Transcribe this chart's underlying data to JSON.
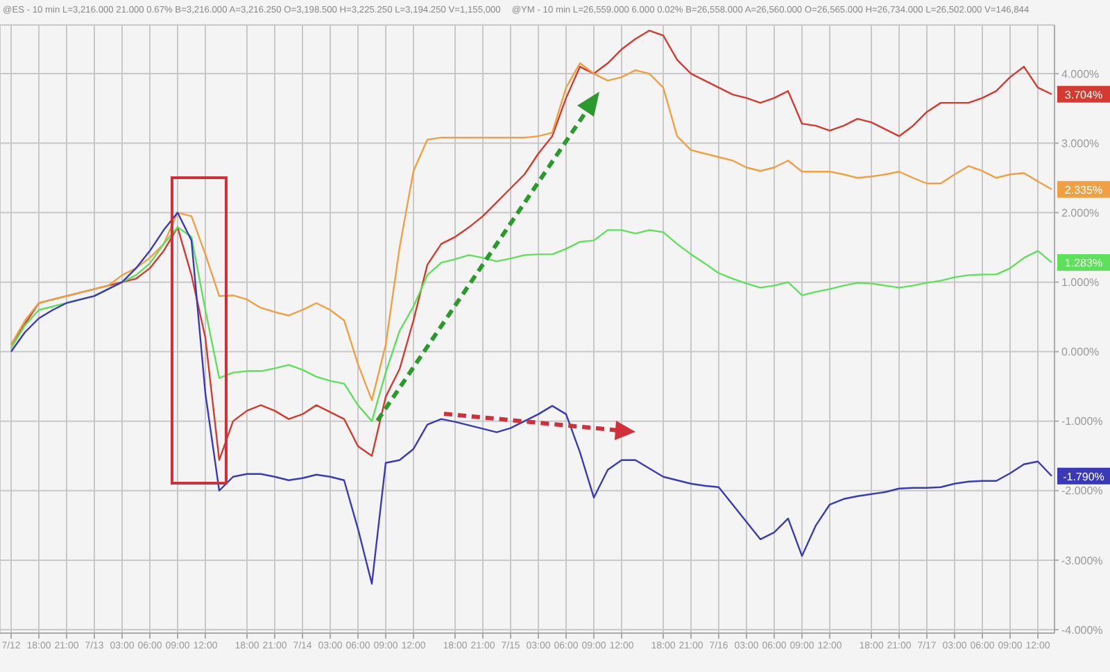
{
  "chart_data": {
    "type": "line",
    "annotations": [
      "@ES - 10 min L=3,216.000 21.000 0.67% B=3,216.000 A=3,216.250 O=3,198.500 H=3,225.250 L=3,194.250 V=1,155,000",
      "@YM - 10 min L=26,559.000 6.000 0.02% B=26,558.000 A=26,560.000 O=26,565.000 H=26,734.000 L=26,502.000 V=146,844"
    ],
    "categories": [
      "7/12",
      null,
      "18:00",
      null,
      "21:00",
      null,
      "7/13",
      null,
      "03:00",
      null,
      "06:00",
      null,
      "09:00",
      null,
      "12:00",
      null,
      null,
      "18:00",
      null,
      "21:00",
      null,
      "7/14",
      null,
      "03:00",
      null,
      "06:00",
      null,
      "09:00",
      null,
      "12:00",
      null,
      null,
      "18:00",
      null,
      "21:00",
      null,
      "7/15",
      null,
      "03:00",
      null,
      "06:00",
      null,
      "09:00",
      null,
      "12:00",
      null,
      null,
      "18:00",
      null,
      "21:00",
      null,
      "7/16",
      null,
      "03:00",
      null,
      "06:00",
      null,
      "09:00",
      null,
      "12:00",
      null,
      null,
      "18:00",
      null,
      "21:00",
      null,
      "7/17",
      null,
      "03:00",
      null,
      "06:00",
      null,
      "09:00",
      null,
      "12:00",
      null
    ],
    "series": [
      {
        "color": "#d43a2f",
        "values": [
          0.1,
          0.4,
          0.7,
          0.75,
          0.8,
          0.85,
          0.9,
          0.95,
          1.0,
          1.05,
          1.2,
          1.45,
          1.79,
          1.1,
          0.2,
          -1.56,
          -1.0,
          -0.85,
          -0.77,
          -0.85,
          -0.97,
          -0.9,
          -0.77,
          -0.87,
          -0.97,
          -1.36,
          -1.5,
          -0.65,
          -0.25,
          0.45,
          1.25,
          1.55,
          1.65,
          1.79,
          1.95,
          2.15,
          2.35,
          2.55,
          2.85,
          3.1,
          3.65,
          4.1,
          4.0,
          4.15,
          4.35,
          4.5,
          4.62,
          4.55,
          4.2,
          4.0,
          3.9,
          3.8,
          3.7,
          3.65,
          3.58,
          3.65,
          3.75,
          3.28,
          3.25,
          3.18,
          3.25,
          3.35,
          3.3,
          3.2,
          3.1,
          3.25,
          3.45,
          3.58,
          3.58,
          3.58,
          3.65,
          3.75,
          3.95,
          4.1,
          3.8,
          3.704
        ],
        "value_labels": [
          null,
          null,
          null,
          null,
          null,
          null,
          null,
          null,
          null,
          null,
          null,
          null,
          null,
          null,
          null,
          null,
          null,
          null,
          null,
          null,
          null,
          null,
          null,
          null,
          null,
          null,
          null,
          null,
          null,
          null,
          null,
          null,
          null,
          null,
          null,
          null,
          null,
          null,
          null,
          null,
          null,
          null,
          null,
          null,
          null,
          null,
          null,
          null,
          null,
          null,
          null,
          null,
          null,
          null,
          null,
          null,
          null,
          null,
          null,
          null,
          null,
          null,
          null,
          null,
          null,
          null,
          null,
          null,
          null,
          null,
          null,
          null,
          null,
          null,
          null,
          "3.704%"
        ]
      },
      {
        "color": "#f0a040",
        "values": [
          0.1,
          0.45,
          0.7,
          0.75,
          0.8,
          0.85,
          0.9,
          0.95,
          1.1,
          1.2,
          1.35,
          1.55,
          2.0,
          1.95,
          1.4,
          0.8,
          0.81,
          0.75,
          0.63,
          0.57,
          0.52,
          0.6,
          0.7,
          0.6,
          0.45,
          -0.18,
          -0.7,
          0.1,
          1.5,
          2.6,
          3.05,
          3.08,
          3.08,
          3.08,
          3.08,
          3.08,
          3.08,
          3.08,
          3.1,
          3.15,
          3.8,
          4.15,
          4.0,
          3.9,
          3.95,
          4.05,
          4.0,
          3.8,
          3.1,
          2.9,
          2.85,
          2.8,
          2.75,
          2.65,
          2.6,
          2.65,
          2.75,
          2.59,
          2.59,
          2.59,
          2.55,
          2.5,
          2.52,
          2.55,
          2.59,
          2.5,
          2.42,
          2.42,
          2.55,
          2.67,
          2.6,
          2.5,
          2.55,
          2.57,
          2.45,
          2.335
        ],
        "value_labels": [
          null,
          null,
          null,
          null,
          null,
          null,
          null,
          null,
          null,
          null,
          null,
          null,
          null,
          null,
          null,
          null,
          null,
          null,
          null,
          null,
          null,
          null,
          null,
          null,
          null,
          null,
          null,
          null,
          null,
          null,
          null,
          null,
          null,
          null,
          null,
          null,
          null,
          null,
          null,
          null,
          null,
          null,
          null,
          null,
          null,
          null,
          null,
          null,
          null,
          null,
          null,
          null,
          null,
          null,
          null,
          null,
          null,
          null,
          null,
          null,
          null,
          null,
          null,
          null,
          null,
          null,
          null,
          null,
          null,
          null,
          null,
          null,
          null,
          null,
          null,
          "2.335%"
        ]
      },
      {
        "color": "#5ee05a",
        "values": [
          0.05,
          0.38,
          0.6,
          0.65,
          0.7,
          0.75,
          0.8,
          0.9,
          1.0,
          1.1,
          1.27,
          1.55,
          1.79,
          1.65,
          0.6,
          -0.38,
          -0.3,
          -0.28,
          -0.28,
          -0.24,
          -0.19,
          -0.26,
          -0.36,
          -0.42,
          -0.46,
          -0.77,
          -1.0,
          -0.3,
          0.3,
          0.65,
          1.1,
          1.28,
          1.33,
          1.39,
          1.35,
          1.3,
          1.34,
          1.39,
          1.4,
          1.4,
          1.48,
          1.58,
          1.6,
          1.75,
          1.75,
          1.7,
          1.75,
          1.72,
          1.55,
          1.4,
          1.27,
          1.13,
          1.05,
          0.98,
          0.92,
          0.95,
          1.0,
          0.81,
          0.86,
          0.9,
          0.95,
          0.99,
          0.98,
          0.95,
          0.92,
          0.95,
          0.99,
          1.02,
          1.07,
          1.1,
          1.11,
          1.11,
          1.2,
          1.35,
          1.45,
          1.283
        ],
        "value_labels": [
          null,
          null,
          null,
          null,
          null,
          null,
          null,
          null,
          null,
          null,
          null,
          null,
          null,
          null,
          null,
          null,
          null,
          null,
          null,
          null,
          null,
          null,
          null,
          null,
          null,
          null,
          null,
          null,
          null,
          null,
          null,
          null,
          null,
          null,
          null,
          null,
          null,
          null,
          null,
          null,
          null,
          null,
          null,
          null,
          null,
          null,
          null,
          null,
          null,
          null,
          null,
          null,
          null,
          null,
          null,
          null,
          null,
          null,
          null,
          null,
          null,
          null,
          null,
          null,
          null,
          null,
          null,
          null,
          null,
          null,
          null,
          null,
          null,
          null,
          null,
          "1.283%"
        ]
      },
      {
        "color": "#3a3ab8",
        "values": [
          0.0,
          0.28,
          0.48,
          0.6,
          0.7,
          0.75,
          0.8,
          0.9,
          1.0,
          1.2,
          1.45,
          1.75,
          2.0,
          1.6,
          -0.6,
          -2.0,
          -1.8,
          -1.76,
          -1.76,
          -1.8,
          -1.85,
          -1.82,
          -1.77,
          -1.8,
          -1.85,
          -2.55,
          -3.34,
          -1.6,
          -1.56,
          -1.4,
          -1.05,
          -0.97,
          -1.01,
          -1.06,
          -1.11,
          -1.16,
          -1.1,
          -1.0,
          -0.9,
          -0.78,
          -0.9,
          -1.45,
          -2.1,
          -1.7,
          -1.56,
          -1.56,
          -1.68,
          -1.8,
          -1.85,
          -1.9,
          -1.93,
          -1.95,
          -2.2,
          -2.45,
          -2.7,
          -2.6,
          -2.4,
          -2.94,
          -2.5,
          -2.2,
          -2.12,
          -2.08,
          -2.05,
          -2.02,
          -1.97,
          -1.96,
          -1.96,
          -1.95,
          -1.9,
          -1.87,
          -1.86,
          -1.86,
          -1.75,
          -1.62,
          -1.58,
          -1.79
        ],
        "value_labels": [
          null,
          null,
          null,
          null,
          null,
          null,
          null,
          null,
          null,
          null,
          null,
          null,
          null,
          null,
          null,
          null,
          null,
          null,
          null,
          null,
          null,
          null,
          null,
          null,
          null,
          null,
          null,
          null,
          null,
          null,
          null,
          null,
          null,
          null,
          null,
          null,
          null,
          null,
          null,
          null,
          null,
          null,
          null,
          null,
          null,
          null,
          null,
          null,
          null,
          null,
          null,
          null,
          null,
          null,
          null,
          null,
          null,
          null,
          null,
          null,
          null,
          null,
          null,
          null,
          null,
          null,
          null,
          null,
          null,
          null,
          null,
          null,
          null,
          null,
          null,
          "-1.790%"
        ]
      }
    ],
    "ylim": [
      -4.05,
      4.7
    ],
    "yticks": [
      {
        "value": -4,
        "label": "-4.000%"
      },
      {
        "value": -3,
        "label": "-3.000%"
      },
      {
        "value": -2,
        "label": "-2.000%"
      },
      {
        "value": -1,
        "label": "-1.000%"
      },
      {
        "value": 0,
        "label": "0.000%"
      },
      {
        "value": 1,
        "label": "1.000%"
      },
      {
        "value": 2,
        "label": "2.000%"
      },
      {
        "value": 3,
        "label": "3.000%"
      },
      {
        "value": 4,
        "label": "4.000%"
      }
    ],
    "grid": true,
    "legend": false
  }
}
